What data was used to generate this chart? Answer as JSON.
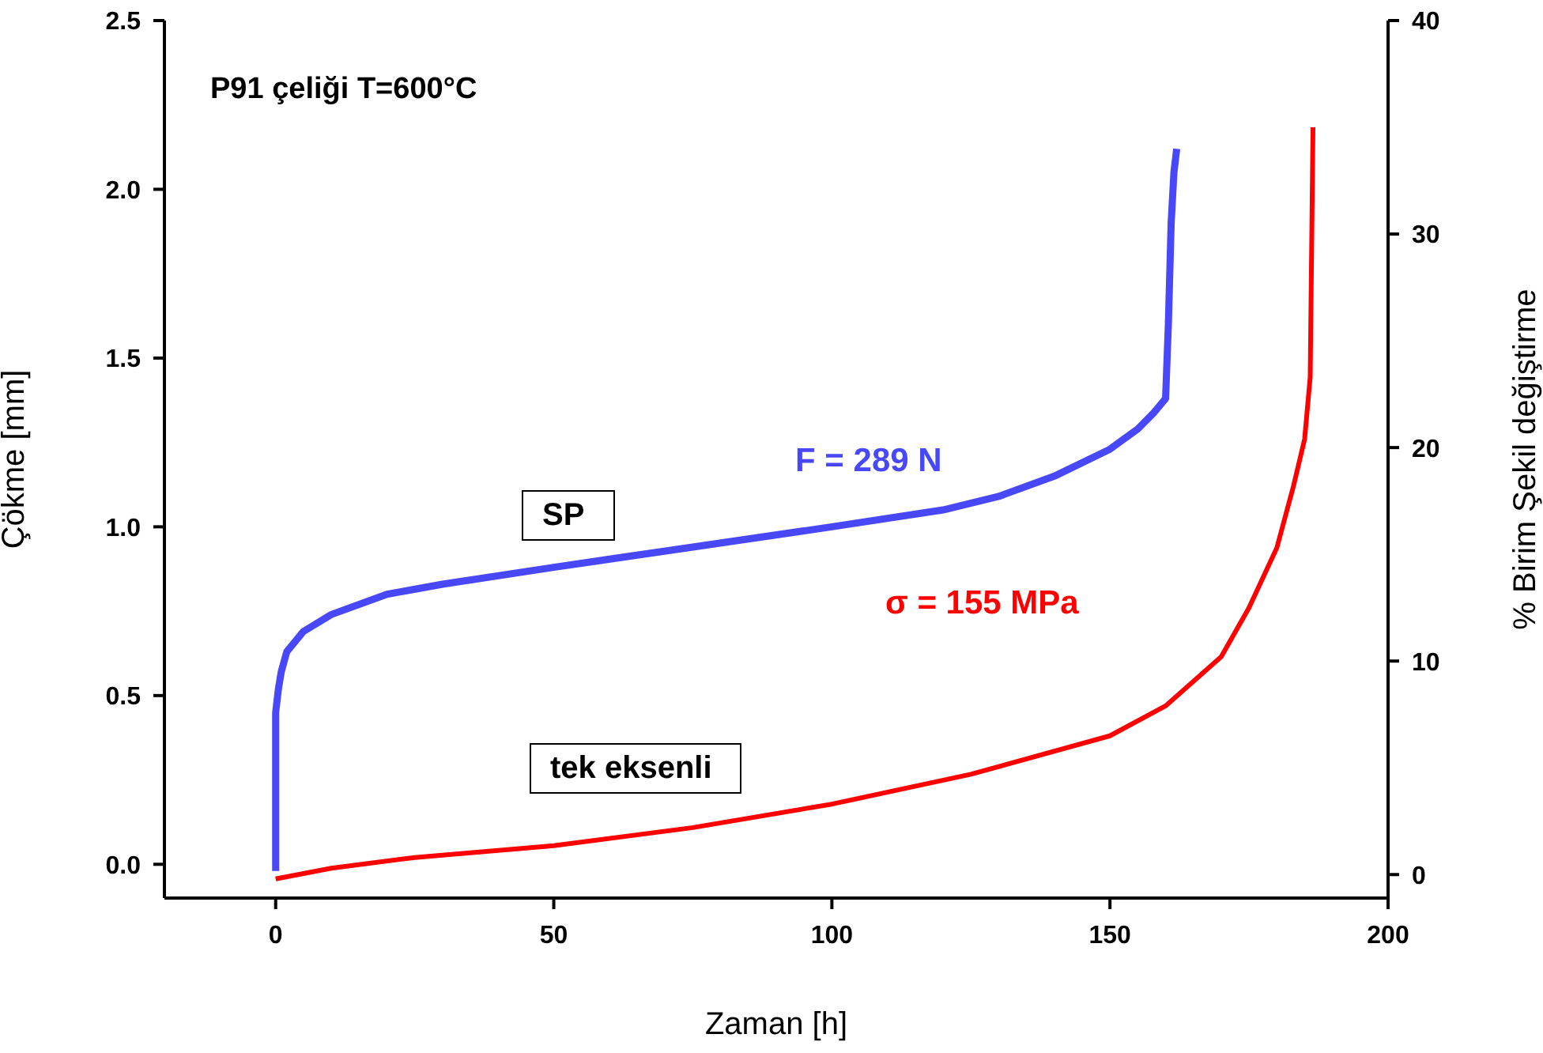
{
  "chart_data": {
    "type": "line",
    "title": "P91 çeliği T=600°C",
    "xlabel": "Zaman [h]",
    "ylabel": "Çökme [mm]",
    "y2label": "% Birim Şekil değiştirme",
    "annotations": [
      "SP",
      "tek eksenli"
    ],
    "xlim": [
      -20,
      200
    ],
    "xticks": [
      0,
      50,
      100,
      150,
      200
    ],
    "ylim": [
      -0.1,
      2.5
    ],
    "yticks": [
      {
        "value": 0,
        "label": "0.0"
      },
      {
        "value": 0.5,
        "label": "0.5"
      },
      {
        "value": 1,
        "label": "1.0"
      },
      {
        "value": 1.5,
        "label": "1.5"
      },
      {
        "value": 2,
        "label": "2.0"
      },
      {
        "value": 2.5,
        "label": "2.5"
      }
    ],
    "y2lim": [
      -1.1,
      40
    ],
    "y2ticks": [
      0,
      10,
      20,
      30,
      40
    ],
    "marker": "none",
    "line_style": "solid",
    "series": [
      {
        "name": "F = 289 N",
        "color": "#4848f8",
        "x": [
          0,
          0,
          0.5,
          1,
          2,
          5,
          10,
          20,
          30,
          50,
          75,
          100,
          120,
          130,
          140,
          150,
          155,
          158,
          160,
          160.5,
          161,
          161.5,
          162
        ],
        "values": [
          -0.02,
          0.45,
          0.52,
          0.57,
          0.63,
          0.69,
          0.74,
          0.8,
          0.83,
          0.88,
          0.94,
          1.0,
          1.05,
          1.09,
          1.15,
          1.23,
          1.29,
          1.34,
          1.38,
          1.6,
          1.9,
          2.05,
          2.12
        ]
      },
      {
        "name": "σ = 155 MPa",
        "color": "#ff0000",
        "axis": "y2",
        "x": [
          0,
          10,
          25,
          50,
          75,
          100,
          125,
          150,
          160,
          170,
          175,
          180,
          183,
          185,
          186,
          186.5
        ],
        "values": [
          -0.2,
          0.3,
          0.8,
          1.35,
          2.2,
          3.3,
          4.7,
          6.5,
          7.9,
          10.2,
          12.5,
          15.3,
          18.2,
          20.4,
          23.3,
          35
        ]
      }
    ]
  }
}
